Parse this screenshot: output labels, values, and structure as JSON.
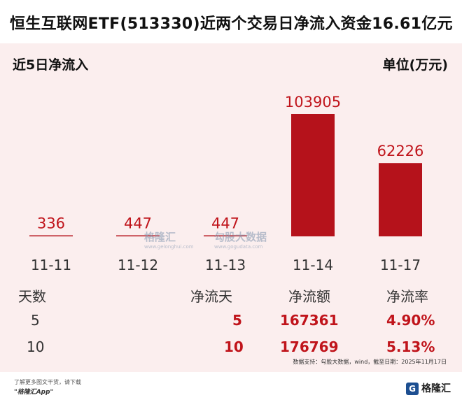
{
  "headline": "恒生互联网ETF(513330)近两个交易日净流入资金16.61亿元",
  "chart_data": {
    "type": "bar",
    "title": "近5日净流入",
    "unit_label": "单位(万元)",
    "categories": [
      "11-11",
      "11-12",
      "11-13",
      "11-14",
      "11-17"
    ],
    "values": [
      336,
      447,
      447,
      103905,
      62226
    ],
    "value_labels": [
      "336",
      "447",
      "447",
      "103905",
      "62226"
    ],
    "ylim": [
      0,
      103905
    ],
    "bar_color": "#b5121b",
    "label_color": "#c0141b"
  },
  "watermarks": {
    "brand": "格隆汇",
    "brand_sub": "www.gelonghui.com",
    "data_brand": "勾股大数据",
    "data_sub": "www.gogudata.com"
  },
  "stats": {
    "headers": [
      "天数",
      "净流天",
      "净流额",
      "净流率"
    ],
    "rows": [
      [
        "5",
        "5",
        "167361",
        "4.90%"
      ],
      [
        "10",
        "10",
        "176769",
        "5.13%"
      ]
    ]
  },
  "source_note": "数据支持：勾股大数据，wind，截至日期：2025年11月17日",
  "footer": {
    "line1": "了解更多图文干货，请下载",
    "line2": "\"格隆汇App\""
  },
  "logo": {
    "mark": "G",
    "text": "格隆汇"
  }
}
